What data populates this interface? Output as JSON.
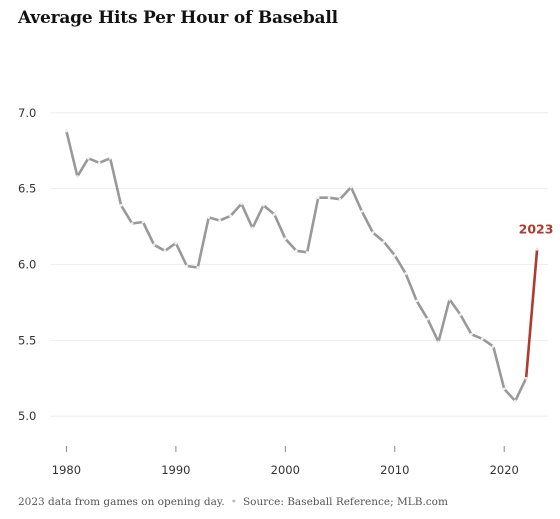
{
  "title": "Average Hits Per Hour of Baseball",
  "footer": {
    "note": "2023 data from games on opening day.",
    "source": "Source: Baseball Reference; MLB.com"
  },
  "colors": {
    "main_line": "#999999",
    "highlight": "#b03a2e",
    "grid": "#eeeeee"
  },
  "chart_data": {
    "type": "line",
    "title": "Average Hits Per Hour of Baseball",
    "xlabel": "",
    "ylabel": "",
    "xlim": [
      1978.5,
      2024
    ],
    "ylim": [
      4.83,
      7.15
    ],
    "x_ticks": [
      1980,
      1990,
      2000,
      2010,
      2020
    ],
    "y_ticks": [
      5.0,
      5.5,
      6.0,
      6.5,
      7.0
    ],
    "y_tick_labels": [
      "5.0",
      "5.5",
      "6.0",
      "6.5",
      "7.0"
    ],
    "grid": "horizontal",
    "series": [
      {
        "x": [
          1980,
          1981,
          1982,
          1983,
          1984,
          1985,
          1986,
          1987,
          1988,
          1989,
          1990,
          1991,
          1992,
          1993,
          1994,
          1995,
          1996,
          1997,
          1998,
          1999,
          2000,
          2001,
          2002,
          2003,
          2004,
          2005,
          2006,
          2007,
          2008,
          2009,
          2010,
          2011,
          2012,
          2013,
          2014,
          2015,
          2016,
          2017,
          2018,
          2019,
          2020,
          2021,
          2022
        ],
        "values": [
          6.88,
          6.58,
          6.7,
          6.67,
          6.7,
          6.39,
          6.27,
          6.28,
          6.13,
          6.09,
          6.14,
          5.99,
          5.98,
          6.31,
          6.29,
          6.32,
          6.4,
          6.24,
          6.39,
          6.33,
          6.17,
          6.09,
          6.08,
          6.44,
          6.44,
          6.43,
          6.51,
          6.35,
          6.21,
          6.15,
          6.06,
          5.94,
          5.76,
          5.64,
          5.49,
          5.77,
          5.67,
          5.54,
          5.51,
          5.46,
          5.18,
          5.1,
          5.25
        ]
      },
      {
        "x": [
          2022,
          2023
        ],
        "values": [
          5.25,
          6.1
        ],
        "annotation": "2023"
      }
    ]
  }
}
